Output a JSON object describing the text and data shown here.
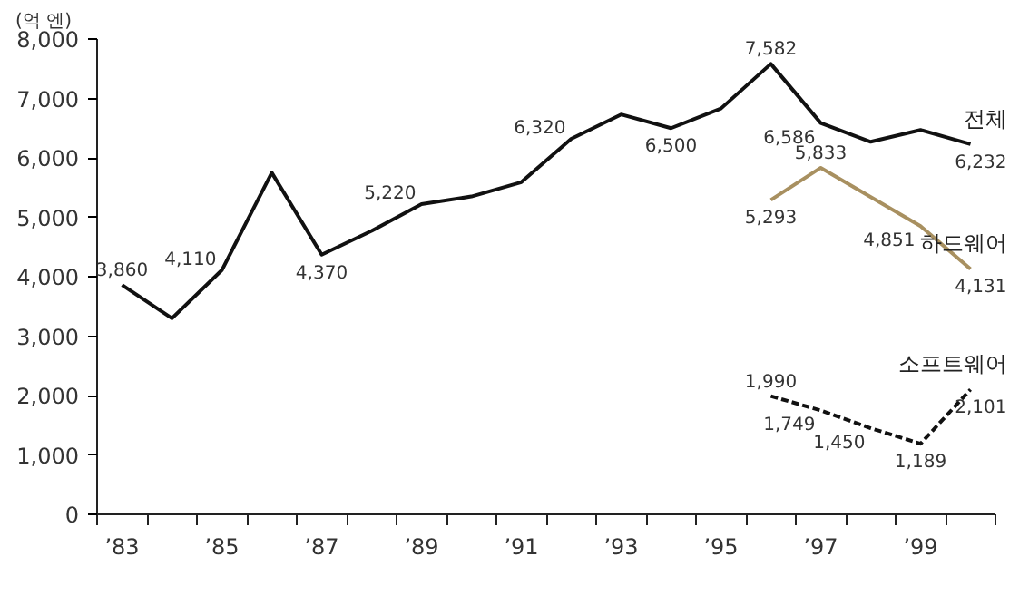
{
  "chart_data": {
    "type": "line",
    "ylabel": "(억 엔)",
    "x": [
      1983,
      1984,
      1985,
      1986,
      1987,
      1988,
      1989,
      1990,
      1991,
      1992,
      1993,
      1994,
      1995,
      1996,
      1997,
      1998,
      1999,
      2000
    ],
    "series": [
      {
        "name": "전체",
        "color": "#111111",
        "line_style": "solid",
        "values": [
          3860,
          3300,
          4110,
          5750,
          4370,
          4770,
          5220,
          5350,
          5590,
          6320,
          6730,
          6500,
          6830,
          7582,
          6586,
          6270,
          6470,
          6232
        ],
        "value_labels": [
          "3,860",
          null,
          "4,110",
          null,
          "4,370",
          null,
          "5,220",
          null,
          null,
          "6,320",
          null,
          "6,500",
          null,
          "7,582",
          "6,586",
          null,
          null,
          "6,232"
        ]
      },
      {
        "name": "하드웨어",
        "color": "#a89060",
        "line_style": "solid",
        "x": [
          1996,
          1997,
          1999,
          2000
        ],
        "values": [
          5293,
          5833,
          4851,
          4131
        ],
        "value_labels": [
          "5,293",
          "5,833",
          "4,851",
          "4,131"
        ]
      },
      {
        "name": "소프트웨어",
        "color": "#111111",
        "line_style": "dashed",
        "x": [
          1996,
          1997,
          1998,
          1999,
          2000
        ],
        "values": [
          1990,
          1749,
          1450,
          1189,
          2101
        ],
        "value_labels": [
          "1,990",
          "1,749",
          "1,450",
          "1,189",
          "2,101"
        ]
      }
    ],
    "xlim": [
      1982.5,
      2000.5
    ],
    "xticks": [
      {
        "value": 1983,
        "label": "’83"
      },
      {
        "value": 1985,
        "label": "’85"
      },
      {
        "value": 1987,
        "label": "’87"
      },
      {
        "value": 1989,
        "label": "’89"
      },
      {
        "value": 1991,
        "label": "’91"
      },
      {
        "value": 1993,
        "label": "’93"
      },
      {
        "value": 1995,
        "label": "’95"
      },
      {
        "value": 1997,
        "label": "’97"
      },
      {
        "value": 1999,
        "label": "’99"
      }
    ],
    "ylim": [
      0,
      8000
    ],
    "yticks": [
      {
        "value": 0,
        "label": "0"
      },
      {
        "value": 1000,
        "label": "1,000"
      },
      {
        "value": 2000,
        "label": "2,000"
      },
      {
        "value": 3000,
        "label": "3,000"
      },
      {
        "value": 4000,
        "label": "4,000"
      },
      {
        "value": 5000,
        "label": "5,000"
      },
      {
        "value": 6000,
        "label": "6,000"
      },
      {
        "value": 7000,
        "label": "7,000"
      },
      {
        "value": 8000,
        "label": "8,000"
      }
    ],
    "grid": false,
    "marker": "none"
  }
}
